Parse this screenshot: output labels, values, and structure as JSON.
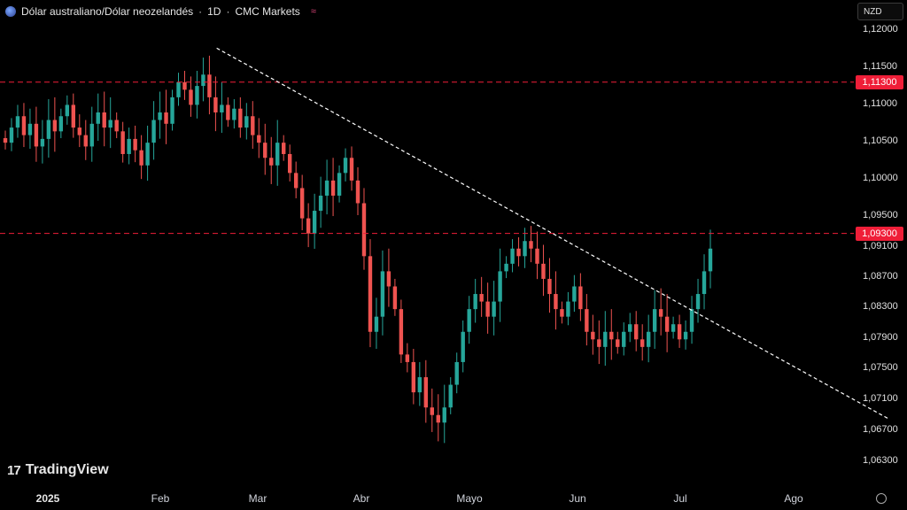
{
  "header": {
    "symbol": "Dólar australiano/Dólar neozelandés",
    "interval": "1D",
    "broker": "CMC Markets",
    "sep": "·"
  },
  "currency_label": "NZD",
  "logo_text": "TradingView",
  "price_axis": [
    "1,12000",
    "1,11500",
    "1,11000",
    "1,10500",
    "1,10000",
    "1,09500",
    "1,09100",
    "1,08700",
    "1,08300",
    "1,07900",
    "1,07500",
    "1,07100",
    "1,06700",
    "1,06300"
  ],
  "levels": [
    {
      "label": "1,11300",
      "value": 1.113
    },
    {
      "label": "1,09300",
      "value": 1.093
    }
  ],
  "time_axis": [
    {
      "label": "2025",
      "bold": true
    },
    {
      "label": "Feb",
      "bold": false
    },
    {
      "label": "Mar",
      "bold": false
    },
    {
      "label": "Abr",
      "bold": false
    },
    {
      "label": "Mayo",
      "bold": false
    },
    {
      "label": "Jun",
      "bold": false
    },
    {
      "label": "Jul",
      "bold": false
    },
    {
      "label": "Ago",
      "bold": false
    }
  ],
  "colors": {
    "up": "#26a69a",
    "down": "#ef5350",
    "level": "#ef1e38",
    "trend": "#ffffff"
  },
  "chart_data": {
    "type": "candlestick",
    "trendline": [
      {
        "date": "2025-02-18",
        "value": 1.1175
      },
      {
        "date": "2025-08-28",
        "value": 1.0685
      }
    ],
    "close_series": [
      1.105,
      1.107,
      1.1085,
      1.106,
      1.1075,
      1.1045,
      1.1055,
      1.108,
      1.1065,
      1.1085,
      1.11,
      1.107,
      1.106,
      1.1045,
      1.1075,
      1.109,
      1.107,
      1.108,
      1.1065,
      1.1035,
      1.1055,
      1.104,
      1.102,
      1.105,
      1.108,
      1.109,
      1.1075,
      1.111,
      1.113,
      1.112,
      1.11,
      1.1125,
      1.114,
      1.111,
      1.109,
      1.11,
      1.108,
      1.1095,
      1.107,
      1.1085,
      1.106,
      1.105,
      1.103,
      1.102,
      1.105,
      1.1035,
      1.101,
      1.099,
      1.095,
      1.093,
      1.096,
      1.098,
      1.1,
      1.098,
      1.101,
      1.103,
      1.1,
      1.097,
      1.09,
      1.08,
      1.082,
      1.088,
      1.086,
      1.083,
      1.077,
      1.076,
      1.072,
      1.074,
      1.07,
      1.069,
      1.068,
      1.07,
      1.073,
      1.076,
      1.08,
      1.083,
      1.085,
      1.084,
      1.082,
      1.084,
      1.088,
      1.089,
      1.091,
      1.09,
      1.092,
      1.091,
      1.089,
      1.087,
      1.085,
      1.083,
      1.082,
      1.084,
      1.086,
      1.083,
      1.08,
      1.079,
      1.078,
      1.08,
      1.079,
      1.078,
      1.08,
      1.081,
      1.079,
      1.078,
      1.08,
      1.083,
      1.082,
      1.08,
      1.081,
      1.079,
      1.08,
      1.083,
      1.085,
      1.088,
      1.091
    ]
  }
}
